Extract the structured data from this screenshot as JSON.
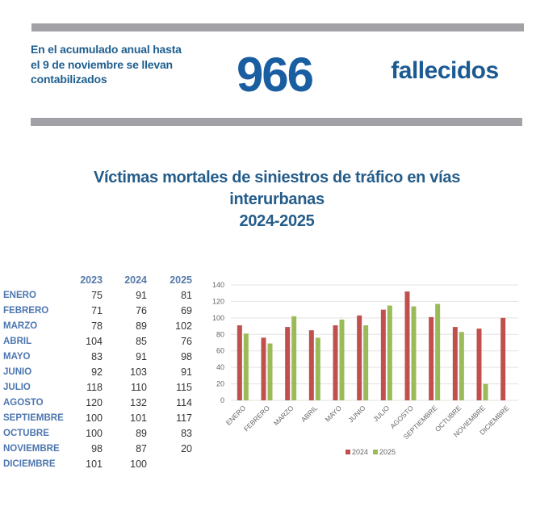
{
  "summary": {
    "text": "En el acumulado anual hasta el 9 de noviembre se llevan contabilizados",
    "number": "966",
    "unit": "fallecidos"
  },
  "title": {
    "line1": "Víctimas mortales de siniestros de tráfico en vías",
    "line2": "interurbanas",
    "line3": "2024-2025"
  },
  "table": {
    "headers": [
      "",
      "2023",
      "2024",
      "2025"
    ],
    "rows": [
      {
        "month": "ENERO",
        "y2023": "75",
        "y2024": "91",
        "y2025": "81"
      },
      {
        "month": "FEBRERO",
        "y2023": "71",
        "y2024": "76",
        "y2025": "69"
      },
      {
        "month": "MARZO",
        "y2023": "78",
        "y2024": "89",
        "y2025": "102"
      },
      {
        "month": "ABRIL",
        "y2023": "104",
        "y2024": "85",
        "y2025": "76"
      },
      {
        "month": "MAYO",
        "y2023": "83",
        "y2024": "91",
        "y2025": "98"
      },
      {
        "month": "JUNIO",
        "y2023": "92",
        "y2024": "103",
        "y2025": "91"
      },
      {
        "month": "JULIO",
        "y2023": "118",
        "y2024": "110",
        "y2025": "115"
      },
      {
        "month": "AGOSTO",
        "y2023": "120",
        "y2024": "132",
        "y2025": "114"
      },
      {
        "month": "SEPTIEMBRE",
        "y2023": "100",
        "y2024": "101",
        "y2025": "117"
      },
      {
        "month": "OCTUBRE",
        "y2023": "100",
        "y2024": "89",
        "y2025": "83"
      },
      {
        "month": "NOVIEMBRE",
        "y2023": "98",
        "y2024": "87",
        "y2025": "20"
      },
      {
        "month": "DICIEMBRE",
        "y2023": "101",
        "y2024": "100",
        "y2025": ""
      }
    ]
  },
  "colors": {
    "series_2024": "#c0504d",
    "series_2025": "#9bbb59",
    "gray_bar": "#a2a2a6",
    "title_blue": "#245c8a",
    "number_blue": "#1a5ea2"
  },
  "chart_data": {
    "type": "bar",
    "title": "Víctimas mortales de siniestros de tráfico en vías interurbanas 2024-2025",
    "xlabel": "",
    "ylabel": "",
    "categories": [
      "ENERO",
      "FEBRERO",
      "MARZO",
      "ABRIL",
      "MAYO",
      "JUNIO",
      "JULIO",
      "AGOSTO",
      "SEPTIEMBRE",
      "OCTUBRE",
      "NOVIEMBRE",
      "DICIEMBRE"
    ],
    "series": [
      {
        "name": "2024",
        "color": "#c0504d",
        "values": [
          91,
          76,
          89,
          85,
          91,
          103,
          110,
          132,
          101,
          89,
          87,
          100
        ]
      },
      {
        "name": "2025",
        "color": "#9bbb59",
        "values": [
          81,
          69,
          102,
          76,
          98,
          91,
          115,
          114,
          117,
          83,
          20,
          null
        ]
      }
    ],
    "ylim": [
      0,
      140
    ],
    "yticks": [
      0,
      20,
      40,
      60,
      80,
      100,
      120,
      140
    ],
    "grid": true,
    "legend": {
      "position": "bottom",
      "entries": [
        "2024",
        "2025"
      ]
    },
    "xtick_rotation": -45
  }
}
